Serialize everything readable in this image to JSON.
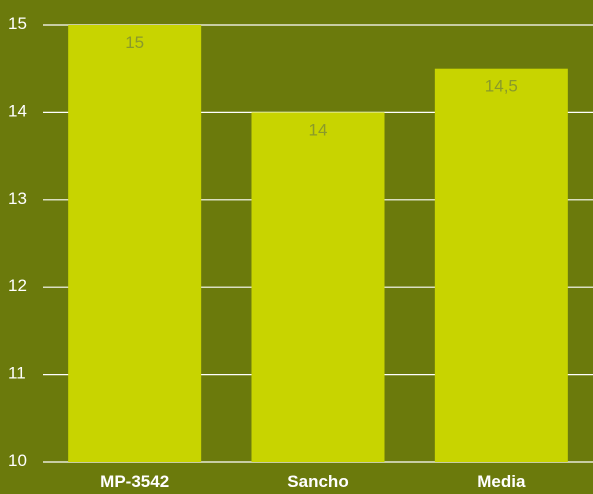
{
  "chart_data": {
    "type": "bar",
    "title": "",
    "xlabel": "",
    "ylabel": "",
    "categories": [
      "MP-3542",
      "Sancho",
      "Media"
    ],
    "values": [
      15,
      14,
      14.5
    ],
    "data_labels": [
      "15",
      "14",
      "14,5"
    ],
    "ylim": [
      10,
      15
    ],
    "yticks": [
      10,
      11,
      12,
      13,
      14,
      15
    ],
    "grid": true,
    "legend": "none",
    "colors": {
      "background": "#6b7a0c",
      "bar": "#c8d400",
      "gridline": "#ffffff",
      "tick_text": "#ffffff",
      "category_text": "#ffffff",
      "data_label_text": "#8a9a2a"
    }
  }
}
